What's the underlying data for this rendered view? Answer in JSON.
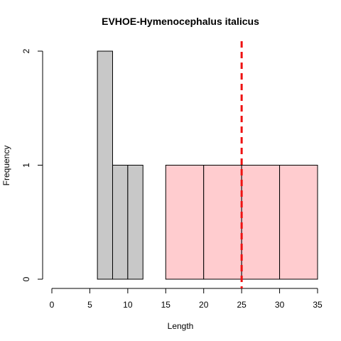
{
  "chart_data": {
    "type": "bar",
    "title": "EVHOE-Hymenocephalus italicus",
    "xlabel": "Length",
    "ylabel": "Frequency",
    "xlim": [
      0,
      35
    ],
    "ylim": [
      0,
      2
    ],
    "x_ticks": [
      "0",
      "5",
      "10",
      "15",
      "20",
      "25",
      "30",
      "35"
    ],
    "y_ticks": [
      "0",
      "1",
      "2"
    ],
    "grid": false,
    "bins": [
      {
        "from": 6,
        "to": 8,
        "count": 2,
        "fill": "#c8c8c8"
      },
      {
        "from": 8,
        "to": 10,
        "count": 1,
        "fill": "#c8c8c8"
      },
      {
        "from": 10,
        "to": 12,
        "count": 1,
        "fill": "#c8c8c8"
      },
      {
        "from": 15,
        "to": 20,
        "count": 1,
        "fill": "#ffcccf"
      },
      {
        "from": 20,
        "to": 25,
        "count": 1,
        "fill": "#ffcccf"
      },
      {
        "from": 25,
        "to": 30,
        "count": 1,
        "fill": "#ffcccf"
      },
      {
        "from": 30,
        "to": 35,
        "count": 1,
        "fill": "#ffcccf"
      }
    ],
    "reference_line": {
      "x": 25,
      "color": "#ee1111",
      "style": "dashed"
    }
  }
}
